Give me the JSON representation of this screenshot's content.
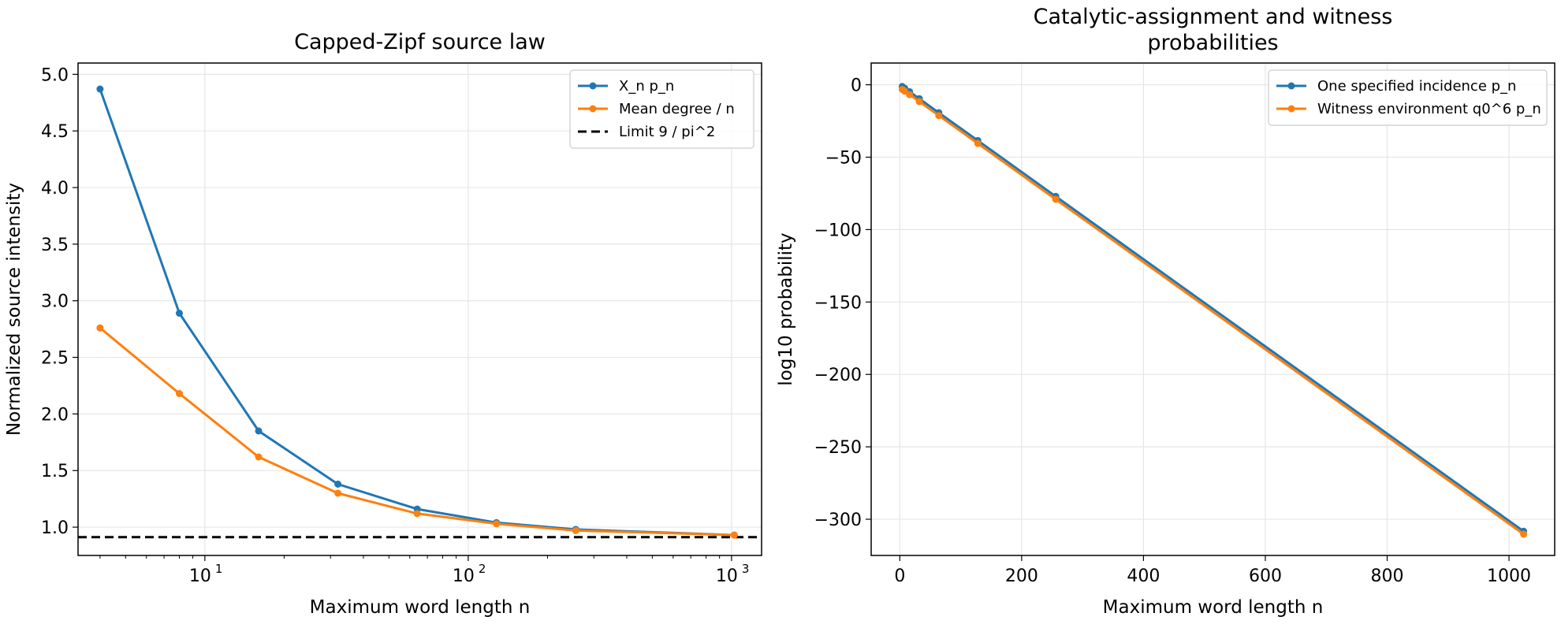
{
  "chart_data": [
    {
      "type": "line",
      "title": "Capped-Zipf source law",
      "xlabel": "Maximum word length n",
      "ylabel": "Normalized source intensity",
      "xscale": "log",
      "xlim": [
        3.3,
        1300
      ],
      "ylim": [
        0.75,
        5.1
      ],
      "xticks": [
        {
          "value": 10,
          "label": "10"
        },
        {
          "value": 100,
          "label": "10"
        },
        {
          "value": 1000,
          "label": "10"
        }
      ],
      "xtick_exponents": [
        "1",
        "2",
        "3"
      ],
      "yticks": [
        1.0,
        1.5,
        2.0,
        2.5,
        3.0,
        3.5,
        4.0,
        4.5,
        5.0
      ],
      "ytick_labels": [
        "1.0",
        "1.5",
        "2.0",
        "2.5",
        "3.0",
        "3.5",
        "4.0",
        "4.5",
        "5.0"
      ],
      "grid": true,
      "legend_position": "top-right",
      "x": [
        4,
        8,
        16,
        32,
        64,
        128,
        256,
        1024
      ],
      "series": [
        {
          "name": "X_n p_n",
          "color": "#1f77b4",
          "values": [
            4.87,
            2.89,
            1.85,
            1.38,
            1.16,
            1.04,
            0.98,
            0.93
          ]
        },
        {
          "name": "Mean degree / n",
          "color": "#ff7f0e",
          "values": [
            2.76,
            2.18,
            1.62,
            1.3,
            1.12,
            1.03,
            0.97,
            0.93
          ]
        }
      ],
      "reference_lines": [
        {
          "name": "Limit 9 / pi^2",
          "color": "#000000",
          "style": "dashed",
          "y": 0.912
        }
      ]
    },
    {
      "type": "line",
      "title": "Catalytic-assignment and witness probabilities",
      "title_lines": [
        "Catalytic-assignment and witness",
        "probabilities"
      ],
      "xlabel": "Maximum word length n",
      "ylabel": "log10 probability",
      "xscale": "linear",
      "xlim": [
        -47,
        1075
      ],
      "ylim": [
        -325,
        15
      ],
      "xticks": [
        {
          "value": 0,
          "label": "0"
        },
        {
          "value": 200,
          "label": "200"
        },
        {
          "value": 400,
          "label": "400"
        },
        {
          "value": 600,
          "label": "600"
        },
        {
          "value": 800,
          "label": "800"
        },
        {
          "value": 1000,
          "label": "1000"
        }
      ],
      "yticks": [
        0,
        -50,
        -100,
        -150,
        -200,
        -250,
        -300
      ],
      "ytick_labels": [
        "0",
        "−50",
        "−100",
        "−150",
        "−200",
        "−250",
        "−300"
      ],
      "grid": true,
      "legend_position": "top-right",
      "x": [
        4,
        8,
        16,
        32,
        64,
        128,
        256,
        1024
      ],
      "series": [
        {
          "name": "One specified incidence p_n",
          "color": "#1f77b4",
          "values": [
            -1.2,
            -2.4,
            -4.8,
            -9.6,
            -19.3,
            -38.5,
            -77.1,
            -308.3
          ]
        },
        {
          "name": "Witness environment q0^6 p_n",
          "color": "#ff7f0e",
          "values": [
            -3.2,
            -4.4,
            -6.8,
            -11.6,
            -21.3,
            -40.5,
            -79.1,
            -310.3
          ]
        }
      ]
    }
  ]
}
